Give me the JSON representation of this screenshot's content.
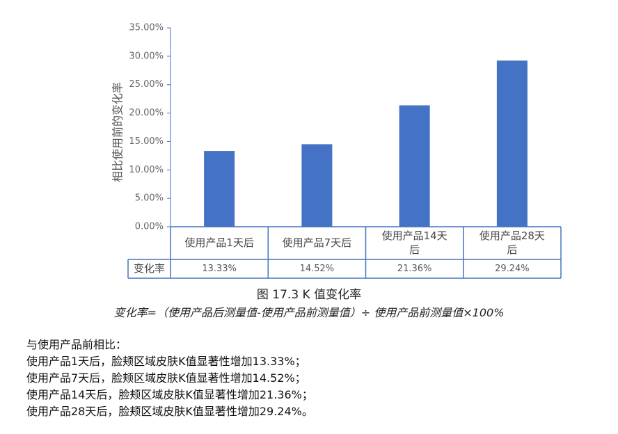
{
  "chart_data": {
    "type": "bar",
    "ylabel": "相比使用前的变化率",
    "ylim": [
      0,
      35
    ],
    "yticks": [
      "0.00%",
      "5.00%",
      "10.00%",
      "15.00%",
      "20.00%",
      "25.00%",
      "30.00%",
      "35.00%"
    ],
    "categories": [
      [
        "使用产品1天后"
      ],
      [
        "使用产品7天后"
      ],
      [
        "使用产品14天",
        "后"
      ],
      [
        "使用产品28天",
        "后"
      ]
    ],
    "values": [
      13.33,
      14.52,
      21.36,
      29.24
    ],
    "table_row_label": "变化率",
    "value_labels": [
      "13.33%",
      "14.52%",
      "21.36%",
      "29.24%"
    ],
    "bar_color": "#4472c4",
    "table_line_color": "#4472c4"
  },
  "caption": "图 17.3 K 值变化率",
  "formula": "变化率=（使用产品后测量值-使用产品前测量值）÷ 使用产品前测量值×100%",
  "summary": {
    "intro": "与使用产品前相比：",
    "lines": [
      "使用产品1天后，脸颊区域皮肤K值显著性增加13.33%；",
      "使用产品7天后，脸颊区域皮肤K值显著性增加14.52%；",
      "使用产品14天后，脸颊区域皮肤K值显著性增加21.36%；",
      "使用产品28天后，脸颊区域皮肤K值显著性增加29.24%。"
    ]
  }
}
